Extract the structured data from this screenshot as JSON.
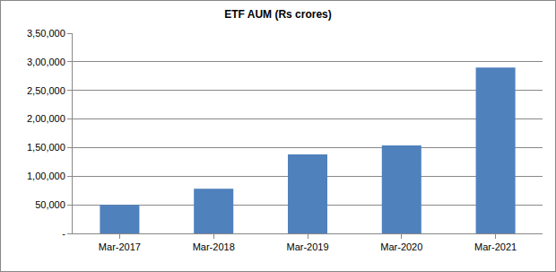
{
  "chart_data": {
    "type": "bar",
    "title": "ETF AUM (Rs crores)",
    "categories": [
      "Mar-2017",
      "Mar-2018",
      "Mar-2019",
      "Mar-2020",
      "Mar-2021"
    ],
    "values": [
      50000,
      78000,
      138000,
      154000,
      290000
    ],
    "color": "#4f81bd",
    "ylim": [
      0,
      350000
    ],
    "yticks": [
      {
        "value": 0,
        "label": "-"
      },
      {
        "value": 50000,
        "label": "50,000"
      },
      {
        "value": 100000,
        "label": "1,00,000"
      },
      {
        "value": 150000,
        "label": "1,50,000"
      },
      {
        "value": 200000,
        "label": "2,00,000"
      },
      {
        "value": 250000,
        "label": "2,50,000"
      },
      {
        "value": 300000,
        "label": "3,00,000"
      },
      {
        "value": 350000,
        "label": "3,50,000"
      }
    ],
    "grid": true
  }
}
